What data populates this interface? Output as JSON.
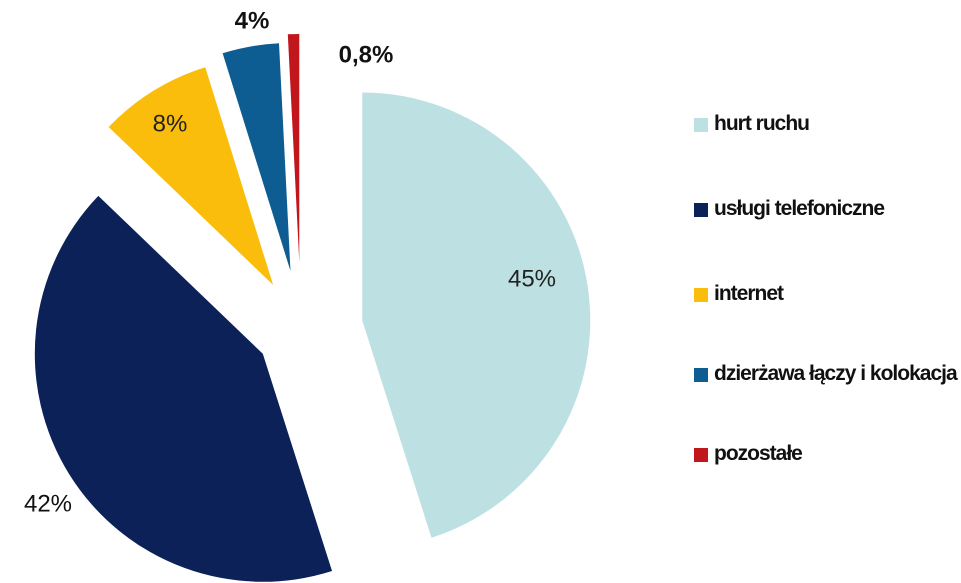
{
  "chart_data": {
    "type": "pie",
    "categories": [
      "hurt ruchu",
      "usługi telefoniczne",
      "internet",
      "dzierżawa łączy i kolokacja",
      "pozostałe"
    ],
    "values": [
      45,
      42,
      8,
      4,
      0.8
    ],
    "value_labels": [
      "45%",
      "42%",
      "8%",
      "4%",
      "0,8%"
    ],
    "colors": [
      "#bde0e3",
      "#0b2158",
      "#fbbd0b",
      "#0e5d92",
      "#c0161c"
    ],
    "legend": "right"
  }
}
